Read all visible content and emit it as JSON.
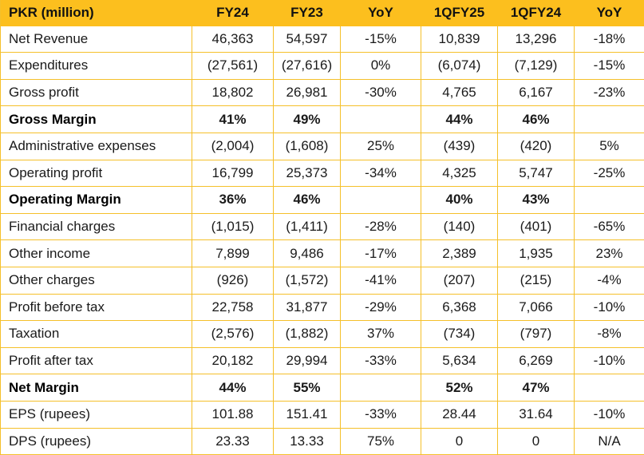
{
  "header": {
    "label": "PKR (million)",
    "fy24": "FY24",
    "fy23": "FY23",
    "yoy_annual": "YoY",
    "q1fy25": "1QFY25",
    "q1fy24": "1QFY24",
    "yoy_quarter": "YoY"
  },
  "colors": {
    "header_bg": "#fcbf1e",
    "grid_line": "#f5c02a"
  },
  "rows": [
    {
      "label": "Net Revenue",
      "fy24": "46,363",
      "fy23": "54,597",
      "yoy_annual": "-15%",
      "q1fy25": "10,839",
      "q1fy24": "13,296",
      "yoy_quarter": "-18%"
    },
    {
      "label": "Expenditures",
      "fy24": "(27,561)",
      "fy23": "(27,616)",
      "yoy_annual": "0%",
      "q1fy25": "(6,074)",
      "q1fy24": "(7,129)",
      "yoy_quarter": "-15%"
    },
    {
      "label": "Gross profit",
      "fy24": "18,802",
      "fy23": "26,981",
      "yoy_annual": "-30%",
      "q1fy25": "4,765",
      "q1fy24": "6,167",
      "yoy_quarter": "-23%"
    },
    {
      "label": "Gross Margin",
      "fy24": "41%",
      "fy23": "49%",
      "yoy_annual": "",
      "q1fy25": "44%",
      "q1fy24": "46%",
      "yoy_quarter": ""
    },
    {
      "label": "Administrative expenses",
      "fy24": "(2,004)",
      "fy23": "(1,608)",
      "yoy_annual": "25%",
      "q1fy25": "(439)",
      "q1fy24": "(420)",
      "yoy_quarter": "5%"
    },
    {
      "label": "Operating profit",
      "fy24": "16,799",
      "fy23": "25,373",
      "yoy_annual": "-34%",
      "q1fy25": "4,325",
      "q1fy24": "5,747",
      "yoy_quarter": "-25%"
    },
    {
      "label": "Operating Margin",
      "fy24": "36%",
      "fy23": "46%",
      "yoy_annual": "",
      "q1fy25": "40%",
      "q1fy24": "43%",
      "yoy_quarter": ""
    },
    {
      "label": "Financial charges",
      "fy24": "(1,015)",
      "fy23": "(1,411)",
      "yoy_annual": "-28%",
      "q1fy25": "(140)",
      "q1fy24": "(401)",
      "yoy_quarter": "-65%"
    },
    {
      "label": "Other income",
      "fy24": "7,899",
      "fy23": "9,486",
      "yoy_annual": "-17%",
      "q1fy25": "2,389",
      "q1fy24": "1,935",
      "yoy_quarter": "23%"
    },
    {
      "label": "Other charges",
      "fy24": "(926)",
      "fy23": "(1,572)",
      "yoy_annual": "-41%",
      "q1fy25": "(207)",
      "q1fy24": "(215)",
      "yoy_quarter": "-4%"
    },
    {
      "label": "Profit before tax",
      "fy24": "22,758",
      "fy23": "31,877",
      "yoy_annual": "-29%",
      "q1fy25": "6,368",
      "q1fy24": "7,066",
      "yoy_quarter": "-10%"
    },
    {
      "label": "Taxation",
      "fy24": "(2,576)",
      "fy23": "(1,882)",
      "yoy_annual": "37%",
      "q1fy25": "(734)",
      "q1fy24": "(797)",
      "yoy_quarter": "-8%"
    },
    {
      "label": "Profit after tax",
      "fy24": "20,182",
      "fy23": "29,994",
      "yoy_annual": "-33%",
      "q1fy25": "5,634",
      "q1fy24": "6,269",
      "yoy_quarter": "-10%"
    },
    {
      "label": "Net Margin",
      "fy24": "44%",
      "fy23": "55%",
      "yoy_annual": "",
      "q1fy25": "52%",
      "q1fy24": "47%",
      "yoy_quarter": ""
    },
    {
      "label": "EPS (rupees)",
      "fy24": "101.88",
      "fy23": "151.41",
      "yoy_annual": "-33%",
      "q1fy25": "28.44",
      "q1fy24": "31.64",
      "yoy_quarter": "-10%"
    },
    {
      "label": "DPS (rupees)",
      "fy24": "23.33",
      "fy23": "13.33",
      "yoy_annual": "75%",
      "q1fy25": "0",
      "q1fy24": "0",
      "yoy_quarter": "N/A"
    }
  ]
}
